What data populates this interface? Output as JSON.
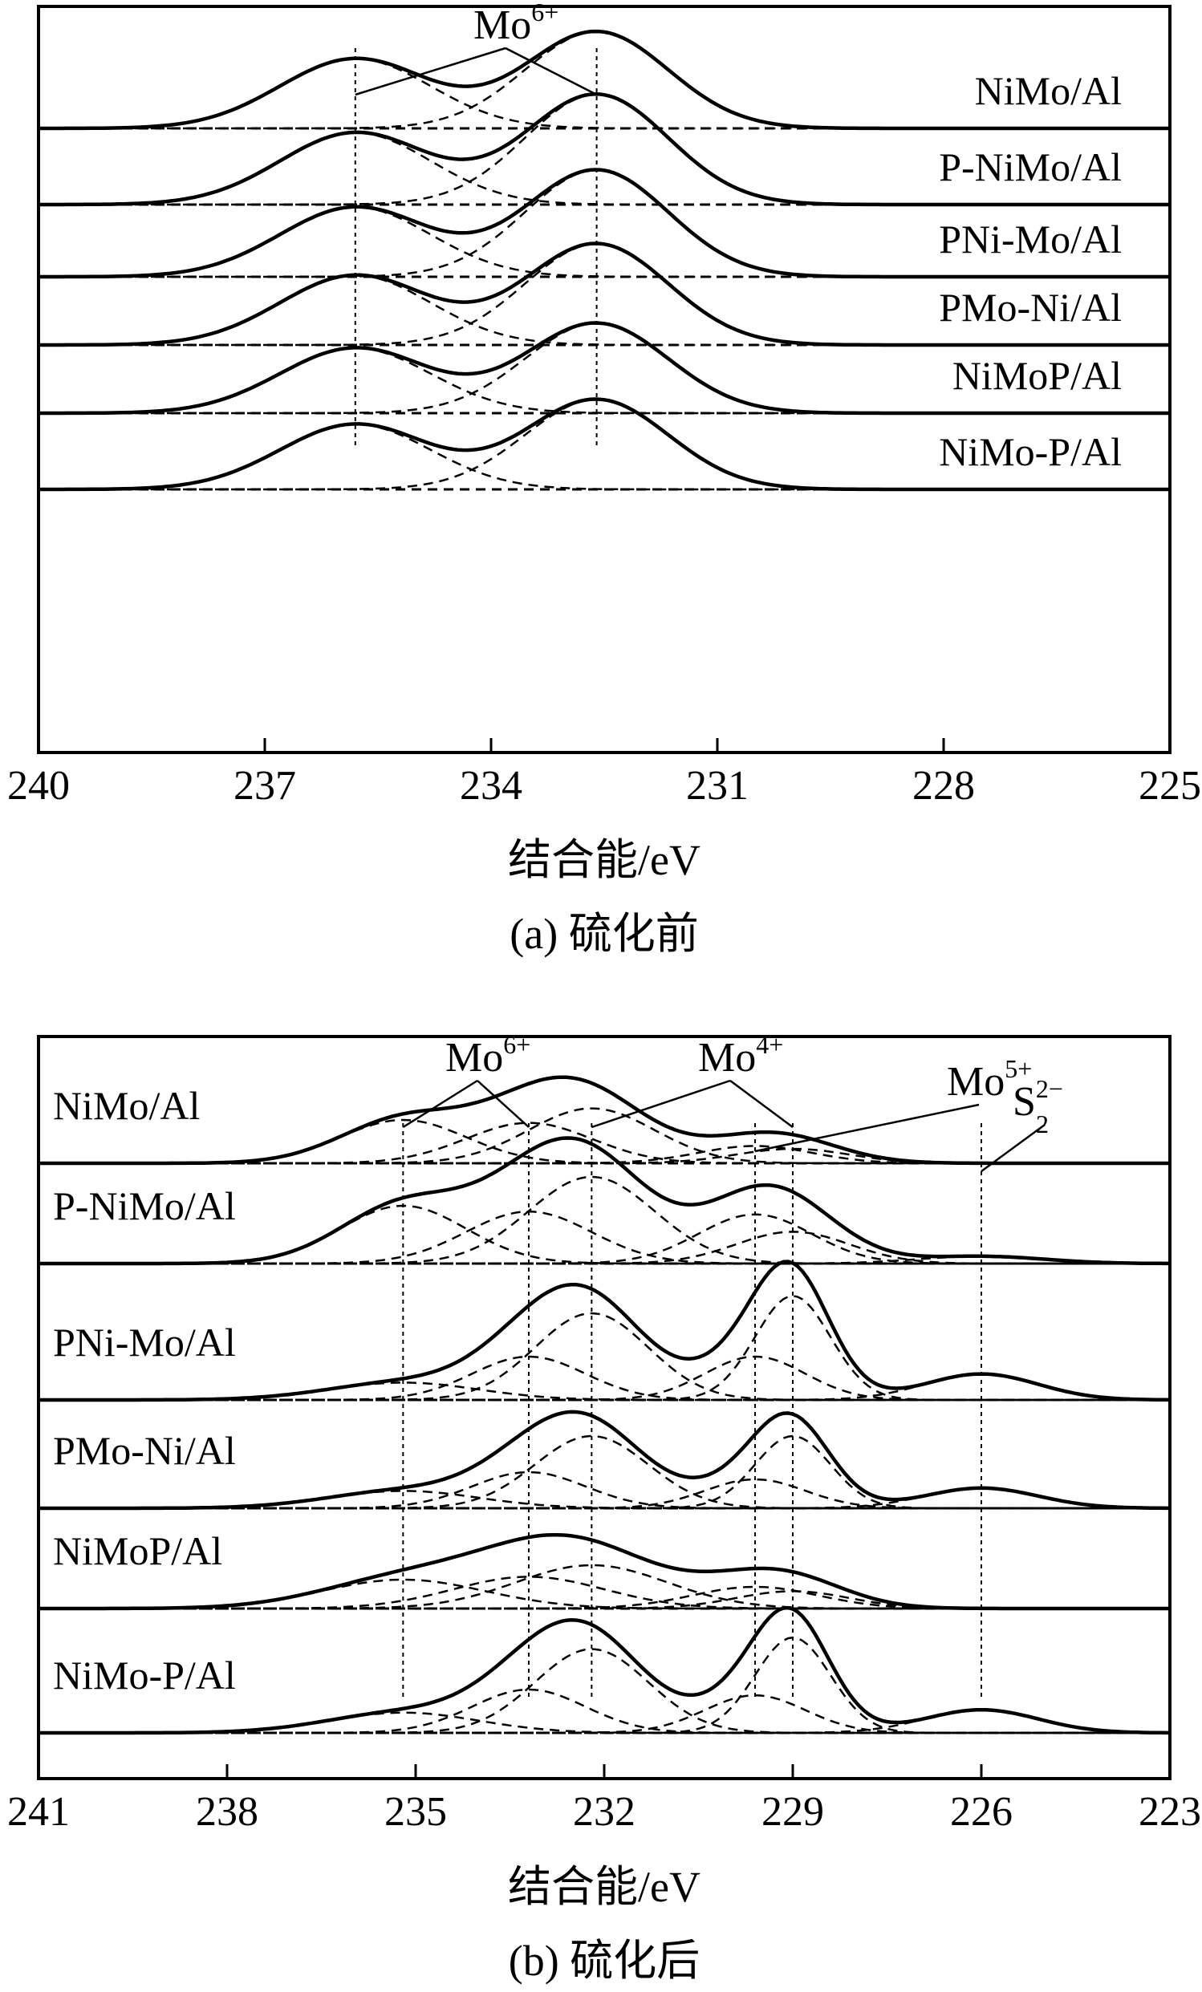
{
  "chart_data": [
    {
      "type": "line",
      "panel": "a",
      "title": "(a) 硫化前",
      "xlabel": "结合能/eV",
      "ylabel": "",
      "xlim": [
        240,
        225
      ],
      "x_ticks": [
        240,
        237,
        234,
        231,
        228,
        225
      ],
      "grid": false,
      "annotations": [
        {
          "label": "Mo",
          "sup": "6+",
          "refs": [
            235.8,
            232.6
          ]
        }
      ],
      "reference_lines": [
        235.8,
        232.6
      ],
      "series": [
        {
          "name": "NiMo/Al",
          "baseline": 0.0,
          "peaks": [
            {
              "center": 235.8,
              "height": 0.62,
              "width": 1.0
            },
            {
              "center": 232.6,
              "height": 0.86,
              "width": 0.95
            }
          ]
        },
        {
          "name": "P-NiMo/Al",
          "baseline": 0.0,
          "peaks": [
            {
              "center": 235.8,
              "height": 0.64,
              "width": 1.0
            },
            {
              "center": 232.6,
              "height": 0.98,
              "width": 0.95
            }
          ]
        },
        {
          "name": "PNi-Mo/Al",
          "baseline": 0.0,
          "peaks": [
            {
              "center": 235.8,
              "height": 0.62,
              "width": 1.0
            },
            {
              "center": 232.6,
              "height": 0.95,
              "width": 0.95
            }
          ]
        },
        {
          "name": "PMo-Ni/Al",
          "baseline": 0.0,
          "peaks": [
            {
              "center": 235.8,
              "height": 0.62,
              "width": 1.0
            },
            {
              "center": 232.6,
              "height": 0.9,
              "width": 0.95
            }
          ]
        },
        {
          "name": "NiMoP/Al",
          "baseline": 0.0,
          "peaks": [
            {
              "center": 235.8,
              "height": 0.58,
              "width": 1.0
            },
            {
              "center": 232.6,
              "height": 0.8,
              "width": 0.95
            }
          ]
        },
        {
          "name": "NiMo-P/Al",
          "baseline": 0.0,
          "peaks": [
            {
              "center": 235.8,
              "height": 0.58,
              "width": 1.0
            },
            {
              "center": 232.6,
              "height": 0.8,
              "width": 0.95
            }
          ]
        }
      ]
    },
    {
      "type": "line",
      "panel": "b",
      "title": "(b) 硫化后",
      "xlabel": "结合能/eV",
      "ylabel": "",
      "xlim": [
        241,
        223
      ],
      "x_ticks": [
        241,
        238,
        235,
        232,
        229,
        226,
        223
      ],
      "grid": false,
      "annotations": [
        {
          "label": "Mo",
          "sup": "6+",
          "refs": [
            235.2,
            233.2
          ]
        },
        {
          "label": "Mo",
          "sup": "4+",
          "refs": [
            232.2,
            229.0
          ]
        },
        {
          "label": "Mo",
          "sup": "5+",
          "refs": [
            229.6
          ]
        },
        {
          "label": "S",
          "sup": "2−",
          "sub": "2",
          "refs": [
            226.0
          ]
        }
      ],
      "reference_lines": [
        235.2,
        233.2,
        232.2,
        229.6,
        229.0,
        226.0
      ],
      "series": [
        {
          "name": "NiMo/Al",
          "baseline": 0.0,
          "peaks": [
            {
              "center": 235.2,
              "height": 0.3,
              "width": 1.0
            },
            {
              "center": 233.2,
              "height": 0.28,
              "width": 1.0
            },
            {
              "center": 232.2,
              "height": 0.38,
              "width": 1.0
            },
            {
              "center": 229.6,
              "height": 0.12,
              "width": 0.9
            },
            {
              "center": 229.0,
              "height": 0.1,
              "width": 0.9
            }
          ]
        },
        {
          "name": "P-NiMo/Al",
          "baseline": 0.0,
          "peaks": [
            {
              "center": 235.2,
              "height": 0.4,
              "width": 1.0
            },
            {
              "center": 233.2,
              "height": 0.36,
              "width": 1.0
            },
            {
              "center": 232.2,
              "height": 0.6,
              "width": 1.0
            },
            {
              "center": 229.6,
              "height": 0.34,
              "width": 0.9
            },
            {
              "center": 229.0,
              "height": 0.22,
              "width": 0.9
            },
            {
              "center": 226.0,
              "height": 0.05,
              "width": 1.0
            }
          ]
        },
        {
          "name": "PNi-Mo/Al",
          "baseline": 0.0,
          "peaks": [
            {
              "center": 235.2,
              "height": 0.12,
              "width": 1.2
            },
            {
              "center": 233.2,
              "height": 0.3,
              "width": 0.9
            },
            {
              "center": 232.2,
              "height": 0.6,
              "width": 0.9
            },
            {
              "center": 229.6,
              "height": 0.3,
              "width": 0.8
            },
            {
              "center": 229.0,
              "height": 0.72,
              "width": 0.6
            },
            {
              "center": 226.0,
              "height": 0.18,
              "width": 0.9
            }
          ]
        },
        {
          "name": "PMo-Ni/Al",
          "baseline": 0.0,
          "peaks": [
            {
              "center": 235.2,
              "height": 0.12,
              "width": 1.2
            },
            {
              "center": 233.2,
              "height": 0.25,
              "width": 0.9
            },
            {
              "center": 232.2,
              "height": 0.5,
              "width": 0.9
            },
            {
              "center": 229.6,
              "height": 0.2,
              "width": 0.8
            },
            {
              "center": 229.0,
              "height": 0.5,
              "width": 0.6
            },
            {
              "center": 226.0,
              "height": 0.14,
              "width": 0.9
            }
          ]
        },
        {
          "name": "NiMoP/Al",
          "baseline": 0.0,
          "peaks": [
            {
              "center": 235.2,
              "height": 0.2,
              "width": 1.3
            },
            {
              "center": 233.2,
              "height": 0.22,
              "width": 1.2
            },
            {
              "center": 232.2,
              "height": 0.3,
              "width": 1.2
            },
            {
              "center": 229.6,
              "height": 0.15,
              "width": 1.0
            },
            {
              "center": 229.0,
              "height": 0.12,
              "width": 0.9
            }
          ]
        },
        {
          "name": "NiMo-P/Al",
          "baseline": 0.0,
          "peaks": [
            {
              "center": 235.2,
              "height": 0.14,
              "width": 1.2
            },
            {
              "center": 233.2,
              "height": 0.3,
              "width": 0.9
            },
            {
              "center": 232.2,
              "height": 0.58,
              "width": 0.9
            },
            {
              "center": 229.6,
              "height": 0.26,
              "width": 0.8
            },
            {
              "center": 229.0,
              "height": 0.66,
              "width": 0.6
            },
            {
              "center": 226.0,
              "height": 0.16,
              "width": 0.9
            }
          ]
        }
      ]
    }
  ]
}
